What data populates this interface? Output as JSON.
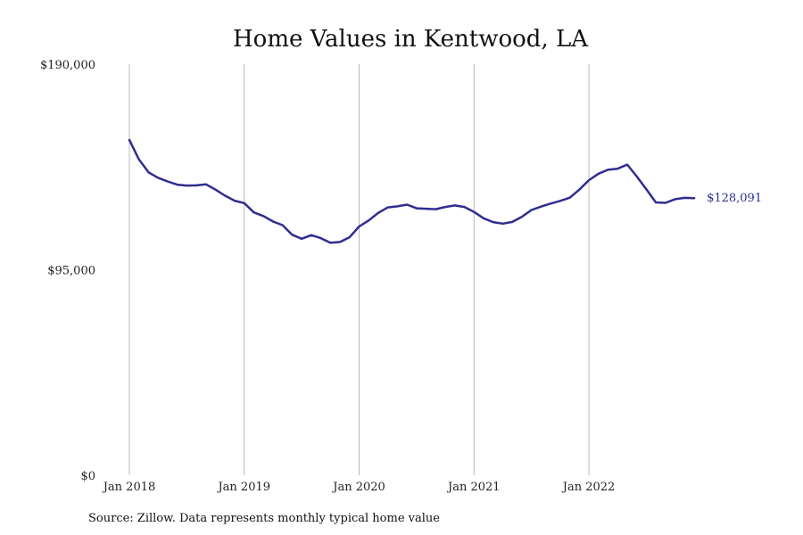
{
  "chart_data": {
    "type": "line",
    "title": "Home Values in Kentwood, LA",
    "xlabel": "",
    "ylabel": "",
    "ylim": [
      0,
      190000
    ],
    "y_ticks": [
      {
        "value": 0,
        "label": "$0"
      },
      {
        "value": 95000,
        "label": "$95,000"
      },
      {
        "value": 190000,
        "label": "$190,000"
      }
    ],
    "x_ticks": [
      {
        "value": "2018-01",
        "label": "Jan 2018"
      },
      {
        "value": "2019-01",
        "label": "Jan 2019"
      },
      {
        "value": "2020-01",
        "label": "Jan 2020"
      },
      {
        "value": "2021-01",
        "label": "Jan 2021"
      },
      {
        "value": "2022-01",
        "label": "Jan 2022"
      }
    ],
    "grid": "vertical",
    "line_color": "#2f2d8f",
    "series": [
      {
        "x": [
          "2018-01",
          "2018-02",
          "2018-03",
          "2018-04",
          "2018-05",
          "2018-06",
          "2018-07",
          "2018-08",
          "2018-09",
          "2018-10",
          "2018-11",
          "2018-12",
          "2019-01",
          "2019-02",
          "2019-03",
          "2019-04",
          "2019-05",
          "2019-06",
          "2019-07",
          "2019-08",
          "2019-09",
          "2019-10",
          "2019-11",
          "2019-12",
          "2020-01",
          "2020-02",
          "2020-03",
          "2020-04",
          "2020-05",
          "2020-06",
          "2020-07",
          "2020-08",
          "2020-09",
          "2020-10",
          "2020-11",
          "2020-12",
          "2021-01",
          "2021-02",
          "2021-03",
          "2021-04",
          "2021-05",
          "2021-06",
          "2021-07",
          "2021-08",
          "2021-09",
          "2021-10",
          "2021-11",
          "2021-12",
          "2022-01",
          "2022-02",
          "2022-03",
          "2022-04",
          "2022-05",
          "2022-06",
          "2022-07",
          "2022-08",
          "2022-09",
          "2022-10",
          "2022-11",
          "2022-12"
        ],
        "values": [
          155000,
          146000,
          140000,
          137500,
          135800,
          134300,
          133900,
          134000,
          134500,
          132000,
          129200,
          126900,
          125800,
          121500,
          119800,
          117300,
          115600,
          111200,
          109300,
          111000,
          109600,
          107500,
          107800,
          110000,
          115000,
          117800,
          121300,
          123800,
          124300,
          125100,
          123400,
          123200,
          123000,
          124000,
          124700,
          124000,
          121700,
          118800,
          117000,
          116300,
          117100,
          119500,
          122600,
          124200,
          125600,
          126800,
          128300,
          132000,
          136400,
          139400,
          141200,
          141700,
          143600,
          138100,
          132200,
          126100,
          125900,
          127600,
          128200,
          128091
        ]
      }
    ],
    "end_label": "$128,091",
    "source": "Source: Zillow. Data represents monthly typical home value"
  }
}
